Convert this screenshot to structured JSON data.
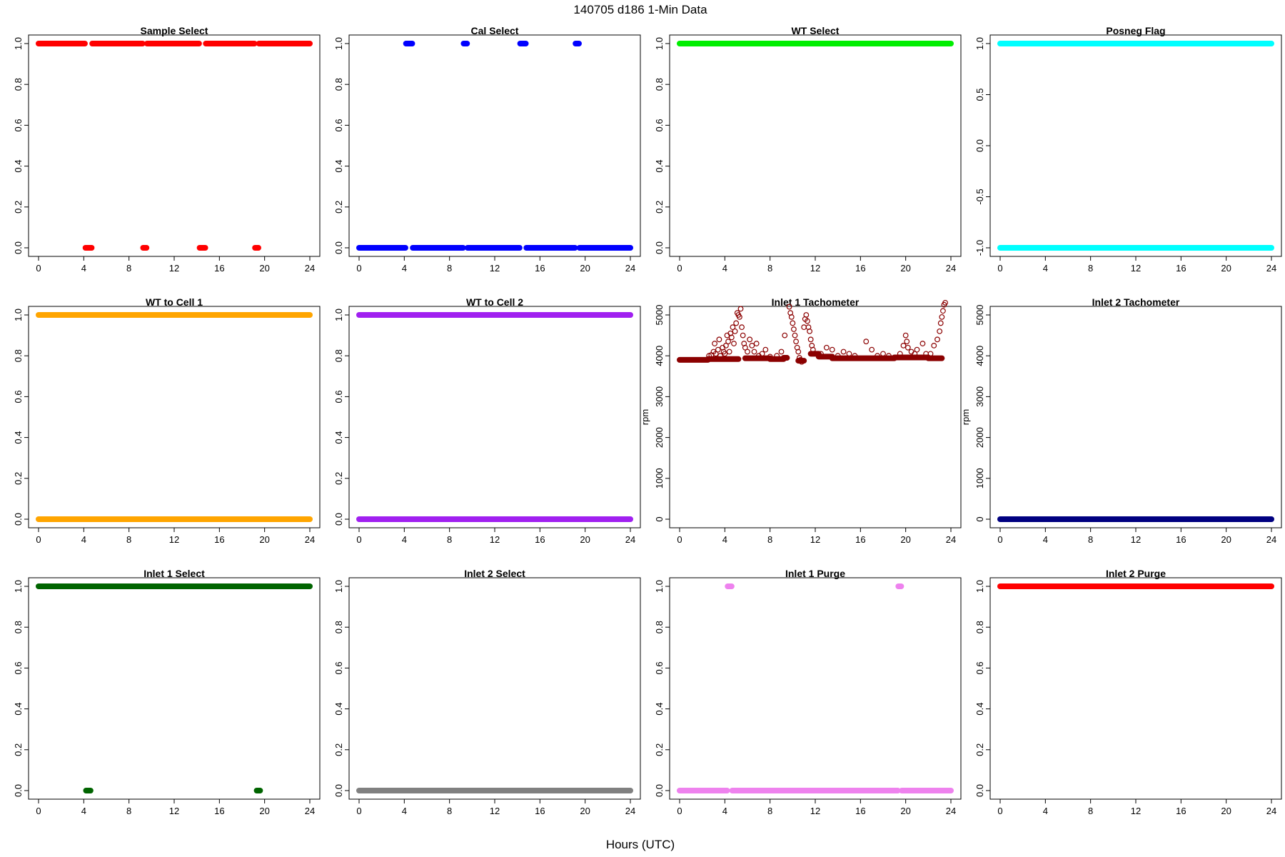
{
  "page": {
    "title": "140705   d186   1-Min Data",
    "xlabel": "Hours (UTC)"
  },
  "chart_data": [
    {
      "type": "scatter",
      "title": "Sample Select",
      "xlabel": "",
      "ylabel": "",
      "xlim": [
        0,
        24
      ],
      "ylim": [
        0,
        1
      ],
      "xticks": [
        "0",
        "4",
        "8",
        "12",
        "16",
        "20",
        "24"
      ],
      "yticks": [
        "0.0",
        "0.2",
        "0.4",
        "0.6",
        "0.8",
        "1.0"
      ],
      "color": "#ff0000",
      "segments": [
        [
          0.0,
          4.1,
          1
        ],
        [
          4.15,
          4.7,
          0
        ],
        [
          4.75,
          9.2,
          1
        ],
        [
          9.25,
          9.55,
          0
        ],
        [
          9.6,
          14.2,
          1
        ],
        [
          14.25,
          14.75,
          0
        ],
        [
          14.8,
          19.1,
          1
        ],
        [
          19.15,
          19.45,
          0
        ],
        [
          19.5,
          24.0,
          1
        ]
      ],
      "points": []
    },
    {
      "type": "scatter",
      "title": "Cal Select",
      "xlabel": "",
      "ylabel": "",
      "xlim": [
        0,
        24
      ],
      "ylim": [
        0,
        1
      ],
      "xticks": [
        "0",
        "4",
        "8",
        "12",
        "16",
        "20",
        "24"
      ],
      "yticks": [
        "0.0",
        "0.2",
        "0.4",
        "0.6",
        "0.8",
        "1.0"
      ],
      "color": "#0000ff",
      "segments": [
        [
          0.0,
          4.1,
          0
        ],
        [
          4.15,
          4.7,
          1
        ],
        [
          4.75,
          9.2,
          0
        ],
        [
          9.25,
          9.55,
          1
        ],
        [
          9.6,
          14.2,
          0
        ],
        [
          14.25,
          14.75,
          1
        ],
        [
          14.8,
          19.1,
          0
        ],
        [
          19.15,
          19.45,
          1
        ],
        [
          19.5,
          24.0,
          0
        ]
      ],
      "points": []
    },
    {
      "type": "scatter",
      "title": "WT Select",
      "xlabel": "",
      "ylabel": "",
      "xlim": [
        0,
        24
      ],
      "ylim": [
        0,
        1
      ],
      "xticks": [
        "0",
        "4",
        "8",
        "12",
        "16",
        "20",
        "24"
      ],
      "yticks": [
        "0.0",
        "0.2",
        "0.4",
        "0.6",
        "0.8",
        "1.0"
      ],
      "color": "#00ee00",
      "segments": [
        [
          0.0,
          24.0,
          1
        ]
      ],
      "points": []
    },
    {
      "type": "scatter",
      "title": "Posneg Flag",
      "xlabel": "",
      "ylabel": "",
      "xlim": [
        0,
        24
      ],
      "ylim": [
        -1,
        1
      ],
      "xticks": [
        "0",
        "4",
        "8",
        "12",
        "16",
        "20",
        "24"
      ],
      "yticks": [
        "-1.0",
        "-0.5",
        "0.0",
        "0.5",
        "1.0"
      ],
      "color": "#00ffff",
      "segments": [
        [
          0.0,
          24.0,
          1
        ],
        [
          0.0,
          24.0,
          -1
        ]
      ],
      "points": []
    },
    {
      "type": "scatter",
      "title": "WT to Cell 1",
      "xlabel": "",
      "ylabel": "",
      "xlim": [
        0,
        24
      ],
      "ylim": [
        0,
        1
      ],
      "xticks": [
        "0",
        "4",
        "8",
        "12",
        "16",
        "20",
        "24"
      ],
      "yticks": [
        "0.0",
        "0.2",
        "0.4",
        "0.6",
        "0.8",
        "1.0"
      ],
      "color": "#ffa500",
      "segments": [
        [
          0.0,
          24.0,
          1
        ],
        [
          0.0,
          24.0,
          0
        ]
      ],
      "points": []
    },
    {
      "type": "scatter",
      "title": "WT to Cell 2",
      "xlabel": "",
      "ylabel": "",
      "xlim": [
        0,
        24
      ],
      "ylim": [
        0,
        1
      ],
      "xticks": [
        "0",
        "4",
        "8",
        "12",
        "16",
        "20",
        "24"
      ],
      "yticks": [
        "0.0",
        "0.2",
        "0.4",
        "0.6",
        "0.8",
        "1.0"
      ],
      "color": "#a020f0",
      "segments": [
        [
          0.0,
          24.0,
          1
        ],
        [
          0.0,
          24.0,
          0
        ]
      ],
      "points": []
    },
    {
      "type": "scatter",
      "title": "Inlet 1 Tachometer",
      "xlabel": "",
      "ylabel": "rpm",
      "xlim": [
        0,
        24
      ],
      "ylim": [
        0,
        5000
      ],
      "xticks": [
        "0",
        "4",
        "8",
        "12",
        "16",
        "20",
        "24"
      ],
      "yticks": [
        "0",
        "1000",
        "2000",
        "3000",
        "4000",
        "5000"
      ],
      "color": "#8b0000",
      "segments": [
        [
          0.0,
          2.5,
          3900
        ],
        [
          2.5,
          5.2,
          3920
        ],
        [
          5.8,
          8.0,
          3940
        ],
        [
          8.0,
          9.2,
          3920
        ],
        [
          9.2,
          9.5,
          3950
        ],
        [
          10.5,
          11.0,
          3880
        ],
        [
          11.6,
          12.3,
          4050
        ],
        [
          12.3,
          13.5,
          3980
        ],
        [
          13.5,
          19.0,
          3940
        ],
        [
          19.0,
          22.0,
          3960
        ],
        [
          22.0,
          23.2,
          3940
        ]
      ],
      "points": [
        [
          2.6,
          4000
        ],
        [
          2.8,
          4020
        ],
        [
          3.0,
          4100
        ],
        [
          3.1,
          4300
        ],
        [
          3.2,
          4050
        ],
        [
          3.4,
          4150
        ],
        [
          3.5,
          4400
        ],
        [
          3.6,
          4000
        ],
        [
          3.8,
          4200
        ],
        [
          3.9,
          4100
        ],
        [
          4.0,
          4050
        ],
        [
          4.1,
          4250
        ],
        [
          4.2,
          4500
        ],
        [
          4.3,
          4350
        ],
        [
          4.4,
          4100
        ],
        [
          4.5,
          4550
        ],
        [
          4.6,
          4450
        ],
        [
          4.7,
          4700
        ],
        [
          4.8,
          4300
        ],
        [
          4.9,
          4600
        ],
        [
          5.0,
          4800
        ],
        [
          5.1,
          5050
        ],
        [
          5.2,
          5000
        ],
        [
          5.3,
          4950
        ],
        [
          5.4,
          5150
        ],
        [
          5.5,
          4700
        ],
        [
          5.6,
          4500
        ],
        [
          5.7,
          4300
        ],
        [
          5.8,
          4200
        ],
        [
          6.0,
          4100
        ],
        [
          6.2,
          4400
        ],
        [
          6.4,
          4250
        ],
        [
          6.6,
          4100
        ],
        [
          6.8,
          4300
        ],
        [
          7.0,
          4000
        ],
        [
          7.3,
          4050
        ],
        [
          7.6,
          4150
        ],
        [
          8.0,
          3980
        ],
        [
          8.6,
          4000
        ],
        [
          9.0,
          4100
        ],
        [
          9.3,
          4500
        ],
        [
          9.7,
          5200
        ],
        [
          9.8,
          5050
        ],
        [
          9.9,
          4950
        ],
        [
          10.0,
          4800
        ],
        [
          10.1,
          4650
        ],
        [
          10.2,
          4500
        ],
        [
          10.3,
          4350
        ],
        [
          10.4,
          4200
        ],
        [
          10.5,
          4100
        ],
        [
          10.6,
          3950
        ],
        [
          10.7,
          3900
        ],
        [
          10.8,
          3850
        ],
        [
          11.0,
          4700
        ],
        [
          11.1,
          4900
        ],
        [
          11.2,
          5000
        ],
        [
          11.3,
          4850
        ],
        [
          11.4,
          4700
        ],
        [
          11.5,
          4600
        ],
        [
          11.6,
          4400
        ],
        [
          11.7,
          4250
        ],
        [
          11.8,
          4150
        ],
        [
          12.5,
          4050
        ],
        [
          13.0,
          4200
        ],
        [
          13.5,
          4150
        ],
        [
          14.0,
          4000
        ],
        [
          14.5,
          4100
        ],
        [
          15.0,
          4050
        ],
        [
          15.5,
          4000
        ],
        [
          16.5,
          4350
        ],
        [
          17.0,
          4150
        ],
        [
          17.5,
          4000
        ],
        [
          18.0,
          4050
        ],
        [
          18.5,
          4000
        ],
        [
          19.5,
          4050
        ],
        [
          19.8,
          4250
        ],
        [
          20.0,
          4500
        ],
        [
          20.1,
          4350
        ],
        [
          20.2,
          4200
        ],
        [
          20.5,
          4100
        ],
        [
          20.8,
          4050
        ],
        [
          21.0,
          4150
        ],
        [
          21.5,
          4300
        ],
        [
          21.8,
          4050
        ],
        [
          22.2,
          4050
        ],
        [
          22.5,
          4250
        ],
        [
          22.8,
          4400
        ],
        [
          23.0,
          4600
        ],
        [
          23.1,
          4800
        ],
        [
          23.2,
          4950
        ],
        [
          23.3,
          5100
        ],
        [
          23.4,
          5250
        ],
        [
          23.5,
          5300
        ]
      ]
    },
    {
      "type": "scatter",
      "title": "Inlet 2 Tachometer",
      "xlabel": "",
      "ylabel": "rpm",
      "xlim": [
        0,
        24
      ],
      "ylim": [
        0,
        5000
      ],
      "xticks": [
        "0",
        "4",
        "8",
        "12",
        "16",
        "20",
        "24"
      ],
      "yticks": [
        "0",
        "1000",
        "2000",
        "3000",
        "4000",
        "5000"
      ],
      "color": "#000080",
      "segments": [
        [
          0.0,
          24.0,
          0
        ]
      ],
      "points": []
    },
    {
      "type": "scatter",
      "title": "Inlet 1 Select",
      "xlabel": "",
      "ylabel": "",
      "xlim": [
        0,
        24
      ],
      "ylim": [
        0,
        1
      ],
      "xticks": [
        "0",
        "4",
        "8",
        "12",
        "16",
        "20",
        "24"
      ],
      "yticks": [
        "0.0",
        "0.2",
        "0.4",
        "0.6",
        "0.8",
        "1.0"
      ],
      "color": "#006400",
      "segments": [
        [
          0.0,
          24.0,
          1
        ],
        [
          4.2,
          4.6,
          0
        ],
        [
          19.3,
          19.6,
          0
        ]
      ],
      "points": []
    },
    {
      "type": "scatter",
      "title": "Inlet 2 Select",
      "xlabel": "",
      "ylabel": "",
      "xlim": [
        0,
        24
      ],
      "ylim": [
        0,
        1
      ],
      "xticks": [
        "0",
        "4",
        "8",
        "12",
        "16",
        "20",
        "24"
      ],
      "yticks": [
        "0.0",
        "0.2",
        "0.4",
        "0.6",
        "0.8",
        "1.0"
      ],
      "color": "#808080",
      "segments": [
        [
          0.0,
          24.0,
          0
        ]
      ],
      "points": []
    },
    {
      "type": "scatter",
      "title": "Inlet 1 Purge",
      "xlabel": "",
      "ylabel": "",
      "xlim": [
        0,
        24
      ],
      "ylim": [
        0,
        1
      ],
      "xticks": [
        "0",
        "4",
        "8",
        "12",
        "16",
        "20",
        "24"
      ],
      "yticks": [
        "0.0",
        "0.2",
        "0.4",
        "0.6",
        "0.8",
        "1.0"
      ],
      "color": "#ee82ee",
      "segments": [
        [
          0.0,
          4.2,
          0
        ],
        [
          4.65,
          19.3,
          0
        ],
        [
          19.65,
          24.0,
          0
        ],
        [
          4.25,
          4.6,
          1
        ],
        [
          19.35,
          19.6,
          1
        ]
      ],
      "points": []
    },
    {
      "type": "scatter",
      "title": "Inlet 2 Purge",
      "xlabel": "",
      "ylabel": "",
      "xlim": [
        0,
        24
      ],
      "ylim": [
        0,
        1
      ],
      "xticks": [
        "0",
        "4",
        "8",
        "12",
        "16",
        "20",
        "24"
      ],
      "yticks": [
        "0.0",
        "0.2",
        "0.4",
        "0.6",
        "0.8",
        "1.0"
      ],
      "color": "#ff0000",
      "segments": [
        [
          0.0,
          24.0,
          1
        ]
      ],
      "points": []
    }
  ]
}
